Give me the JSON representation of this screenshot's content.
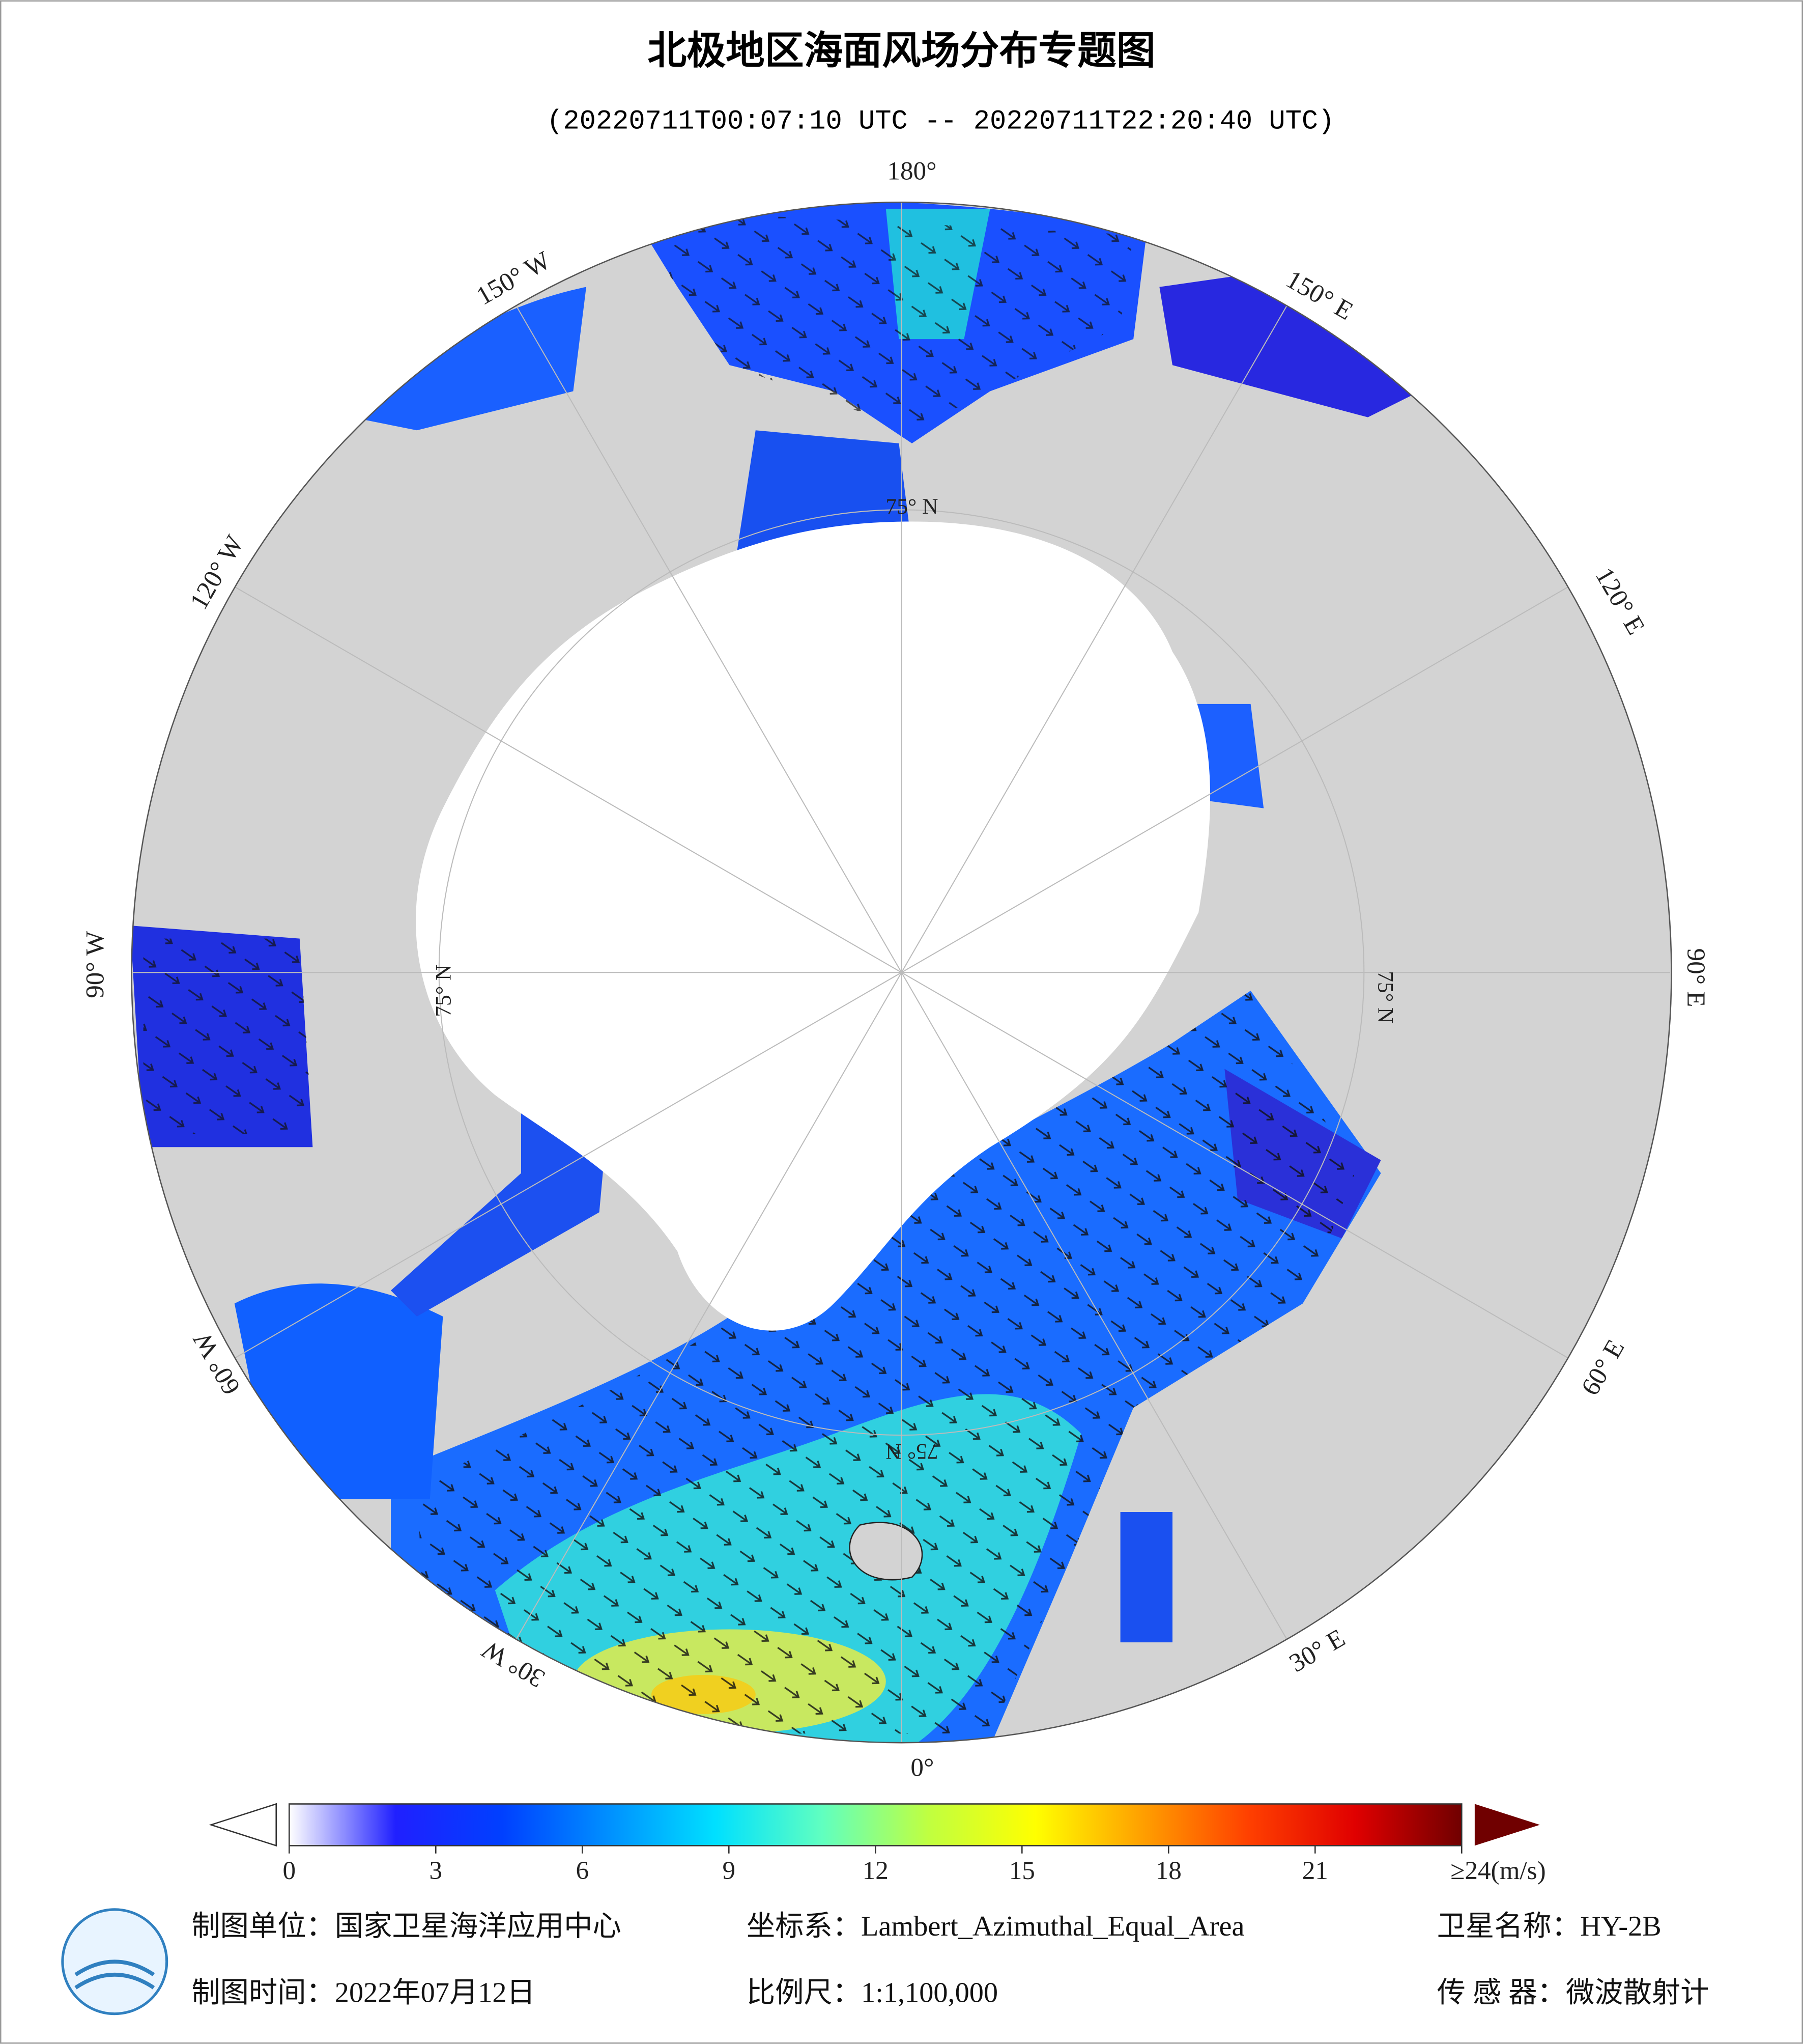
{
  "header": {
    "title": "北极地区海面风场分布专题图",
    "subtitle": "(20220711T00:07:10 UTC -- 20220711T22:20:40 UTC)"
  },
  "map": {
    "lon_labels": [
      "180°",
      "150° E",
      "120° E",
      "90° E",
      "60° E",
      "30° E",
      "0°",
      "30° W",
      "60° W",
      "90° W",
      "120° W",
      "150° W"
    ],
    "lat_labels": [
      "75° N",
      "75° N",
      "75° N",
      "75° N"
    ]
  },
  "colorbar": {
    "lim": [
      0,
      24
    ],
    "ticks": [
      0,
      3,
      6,
      9,
      12,
      15,
      18,
      21,
      {
        "value": 24,
        "label": "≥24(m/s)"
      }
    ],
    "colors": [
      "#ffffff",
      "#2020ff",
      "#0040ff",
      "#0090ff",
      "#00e0ff",
      "#60ffc0",
      "#c0ff40",
      "#ffff00",
      "#ffa000",
      "#ff4000",
      "#e00000",
      "#700000"
    ]
  },
  "footer": {
    "unit": "制图单位：国家卫星海洋应用中心",
    "crs": "坐标系：Lambert_Azimuthal_Equal_Area",
    "satellite": "卫星名称：HY-2B",
    "date": "制图时间：2022年07月12日",
    "scale": "比例尺：1:1,100,000",
    "sensor": "传 感 器：微波散射计"
  }
}
